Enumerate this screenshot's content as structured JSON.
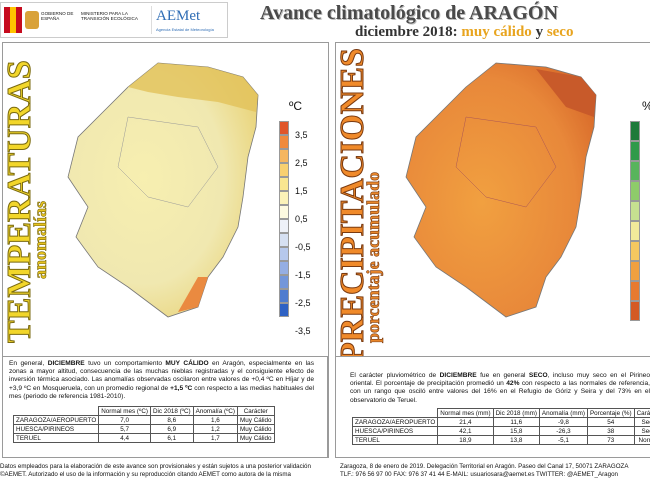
{
  "header": {
    "gov": "GOBIERNO DE ESPAÑA",
    "ministry": "MINISTERIO PARA LA TRANSICIÓN ECOLÓGICA",
    "aemet": "AEMet",
    "aemet_full": "Agencia Estatal de Meteorología",
    "title": "Avance climatológico de ARAGÓN",
    "subtitle_parts": [
      "diciembre 2018: ",
      "muy cálido",
      " y ",
      "seco"
    ]
  },
  "temperature": {
    "title": "TEMPERATURAS",
    "subtitle": "anomalías",
    "unit": "ºC",
    "legend": [
      "3,5",
      "2,5",
      "1,5",
      "0,5",
      "-0,5",
      "-1,5",
      "-2,5",
      "-3,5"
    ],
    "text": [
      "En general, ",
      "DICIEMBRE",
      " tuvo un comportamiento ",
      "MUY CÁLIDO",
      " en Aragón, especialmente en las zonas a mayor altitud, consecuencia de las muchas nieblas registradas y el consiguiente efecto de inversión térmica asociado. Las anomalías observadas oscilaron entre valores de +0,4 ºC en Híjar y de +3,9 ºC en Mosqueruela, con un promedio regional de ",
      "+1,5 ºC",
      " con respecto a las medias habituales del mes (periodo de referencia 1981-2010)."
    ],
    "table": {
      "columns": [
        "Normal mes (ºC)",
        "Dic 2018 (ºC)",
        "Anomalía (ºC)",
        "Carácter"
      ],
      "rows": [
        [
          "ZARAGOZA/AEROPUERTO",
          "7,0",
          "8,6",
          "1,6",
          "Muy Cálido"
        ],
        [
          "HUESCA/PIRINEOS",
          "5,7",
          "6,9",
          "1,2",
          "Muy Cálido"
        ],
        [
          "TERUEL",
          "4,4",
          "6,1",
          "1,7",
          "Muy Cálido"
        ]
      ]
    }
  },
  "precipitation": {
    "title": "PRECIPITACIONES",
    "subtitle": "porcentaje acumulado",
    "unit": "%",
    "text": [
      "El carácter pluviométrico de ",
      "DICIEMBRE",
      " fue en general ",
      "SECO",
      ", incluso muy seco en el Pirineo oriental. El porcentaje de precipitación promedió un ",
      "42%",
      " con respecto a las normales de referencia, con un rango que osciló entre valores del 16% en el Refugio de Góriz y Seira y del 73% en el observatorio de Teruel."
    ],
    "table": {
      "columns": [
        "Normal mes (mm)",
        "Dic 2018 (mm)",
        "Anomalía (mm)",
        "Porcentaje (%)",
        "Carácter"
      ],
      "rows": [
        [
          "ZARAGOZA/AEROPUERTO",
          "21,4",
          "11,6",
          "-9,8",
          "54",
          "Seco"
        ],
        [
          "HUESCA/PIRINEOS",
          "42,1",
          "15,8",
          "-26,3",
          "38",
          "Seco"
        ],
        [
          "TERUEL",
          "18,9",
          "13,8",
          "-5,1",
          "73",
          "Normal"
        ]
      ]
    }
  },
  "footer": {
    "left": [
      "Datos empleados para la elaboración de este avance son provisionales y están sujetos a una posterior validación",
      "©AEMET. Autorizado el uso de la información y su reproducción citando AEMET como autora de la misma"
    ],
    "right": [
      "Zaragoza, 8 de enero de 2019. Delegación Territorial en Aragón. Paseo del Canal 17, 50071 ZARAGOZA",
      "TLF.: 976 56 97 00  FAX: 976 37 41 44  E-MAIL: usuariosara@aemet.es  TWITTER: @AEMET_Aragon"
    ]
  }
}
